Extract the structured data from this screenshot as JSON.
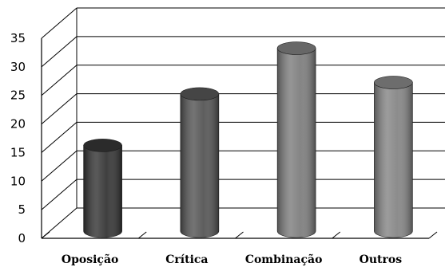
{
  "chart_data": {
    "type": "bar",
    "style": "3d-cylinder",
    "categories": [
      "Oposição",
      "Crítica",
      "Combinação",
      "Outros"
    ],
    "values": [
      15,
      24,
      32,
      26
    ],
    "colors": [
      "#353535",
      "#555555",
      "#7e7e7e",
      "#868686"
    ],
    "ylim": [
      0,
      35
    ],
    "yticks": [
      0,
      5,
      10,
      15,
      20,
      25,
      30,
      35
    ],
    "grid": true,
    "legend": "none"
  }
}
